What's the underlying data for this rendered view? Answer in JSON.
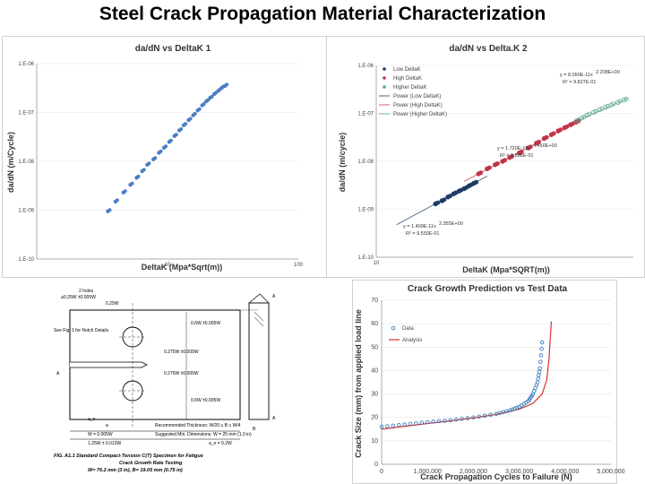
{
  "slide_title": "Steel Crack Propagation Material Characterization",
  "chart_data": [
    {
      "type": "scatter",
      "title": "da/dN vs DeltaK 1",
      "xlabel": "DeltaK (Mpa*Sqrt(m))",
      "ylabel": "da/dN (m/Cycle)",
      "x_scale": "log",
      "y_scale": "log",
      "xlim": [
        1,
        100
      ],
      "ylim": [
        1e-10,
        1e-06
      ],
      "x_ticks": [
        "10",
        "100"
      ],
      "y_ticks": [
        "1.E-10",
        "1.E-09",
        "1.E-08",
        "1.E-07",
        "1.E-06"
      ],
      "series": [
        {
          "color": "#4a7ec2",
          "x": [
            3.5,
            4.0,
            4.6,
            5.2,
            5.8,
            6.4,
            7.0,
            7.8,
            8.6,
            9.4,
            10.3,
            11.3,
            12.3,
            13.3,
            14.5,
            15.7,
            17.0,
            18.4,
            19.8,
            21.2,
            22.8,
            24.5,
            26.0,
            27.5
          ],
          "y": [
            9.5e-10,
            1.5e-09,
            2.3e-09,
            3.3e-09,
            4.6e-09,
            6.3e-09,
            8.5e-09,
            1.1e-08,
            1.5e-08,
            1.9e-08,
            2.5e-08,
            3.3e-08,
            4.3e-08,
            5.5e-08,
            7e-08,
            8.8e-08,
            1.1e-07,
            1.4e-07,
            1.7e-07,
            2e-07,
            2.4e-07,
            2.8e-07,
            3.2e-07,
            3.5e-07
          ]
        }
      ]
    },
    {
      "type": "scatter",
      "title": "da/dN vs Delta.K 2",
      "xlabel": "DeltaK (Mpa*SQRT(m))",
      "ylabel": "da/dN (m/cycle)",
      "x_scale": "log",
      "y_scale": "log",
      "xlim": [
        10,
        100
      ],
      "ylim": [
        1e-10,
        1e-06
      ],
      "x_ticks": [
        "10"
      ],
      "y_ticks": [
        "1.E-10",
        "1.E-09",
        "1.E-08",
        "1.E-07",
        "1.E-06"
      ],
      "legend": [
        "Low DeltaK",
        "High DeltaK",
        "Higher DeltaK",
        "Power (Low DeltaK)",
        "Power (High DeltaK)",
        "Power (Higher DeltaK)"
      ],
      "legend_position": "top-left",
      "annotations": [
        {
          "text": "y = 8.050E-11x",
          "sup": "2.208E+00",
          "r2": "R² = 9.827E-01"
        },
        {
          "text": "y = 1.720E-15x",
          "sup": "4.450E+00",
          "r2": "R² = 9.808E-01"
        },
        {
          "text": "y = 1.409E-11x",
          "sup": "2.355E+00",
          "r2": "R² = 9.550E-01"
        }
      ],
      "series": [
        {
          "name": "Low DeltaK",
          "color": "#1f3a66",
          "x": [
            17,
            18,
            19,
            20,
            21,
            22,
            23,
            24
          ],
          "y": [
            1.3e-09,
            1.5e-09,
            1.8e-09,
            2.1e-09,
            2.4e-09,
            2.7e-09,
            3.1e-09,
            3.5e-09
          ]
        },
        {
          "name": "High DeltaK",
          "color": "#c2344a",
          "x": [
            25,
            27,
            29,
            31,
            33,
            36,
            39,
            42,
            45,
            48,
            51,
            54,
            57,
            60
          ],
          "y": [
            5.5e-09,
            7e-09,
            8.5e-09,
            1e-08,
            1.2e-08,
            1.5e-08,
            1.9e-08,
            2.4e-08,
            3e-08,
            3.6e-08,
            4.3e-08,
            5e-08,
            5.8e-08,
            6.6e-08
          ]
        },
        {
          "name": "Higher DeltaK",
          "color": "#5aa88a",
          "x": [
            60,
            63,
            66,
            70,
            74,
            78,
            82,
            87,
            92
          ],
          "y": [
            7e-08,
            8e-08,
            9.2e-08,
            1.05e-07,
            1.2e-07,
            1.35e-07,
            1.5e-07,
            1.7e-07,
            1.9e-07
          ]
        }
      ]
    },
    {
      "type": "line",
      "title": "Crack Growth Prediction vs Test Data",
      "xlabel": "Crack Propagation Cycles to Failure (N)",
      "ylabel": "Crack Size (mm) from applied load line",
      "xlim": [
        0,
        5000000
      ],
      "ylim": [
        0,
        70
      ],
      "x_ticks": [
        "0",
        "1,000,000",
        "2,000,000",
        "3,000,000",
        "4,000,000",
        "5,000,000"
      ],
      "y_ticks": [
        "0",
        "10",
        "20",
        "30",
        "40",
        "50",
        "60",
        "70"
      ],
      "legend": [
        "Data",
        "Analysis"
      ],
      "legend_position": "top-left",
      "series": [
        {
          "name": "Data",
          "color": "#3a7fc0",
          "x": [
            0,
            500000,
            1000000,
            1500000,
            2000000,
            2500000,
            2800000,
            3000000,
            3200000,
            3300000,
            3400000,
            3450000,
            3500000
          ],
          "y": [
            16,
            17,
            18,
            18.8,
            20,
            21.5,
            23,
            24.5,
            27,
            30,
            35,
            41,
            52
          ]
        },
        {
          "name": "Analysis",
          "color": "#d63030",
          "x": [
            0,
            500000,
            1000000,
            1500000,
            2000000,
            2500000,
            3000000,
            3300000,
            3500000,
            3600000,
            3650000,
            3700000
          ],
          "y": [
            15,
            16.2,
            17.4,
            18.5,
            19.8,
            21.3,
            23.5,
            26,
            30,
            36,
            45,
            61
          ]
        }
      ]
    }
  ],
  "drawing": {
    "notes": [
      "2 holes",
      "⌀0.25W ±0.005W",
      "0.25W",
      "See Fig. 1 for Notch Details",
      "0.6W ±0.005W",
      "0.275W ±0.005W",
      "0.275W ±0.005W",
      "0.6W ±0.005W",
      "a",
      "a_n",
      "W = 0.005W",
      "1.25W ± 0.010W",
      "B",
      "A",
      "A",
      "A"
    ],
    "thickness": "Recommended Thickness: W/20 ≤ B ≤ W/4",
    "min_dims": "Suggested Min. Dimensions: W = 25 mm (1.0 in)",
    "an_note": "a_n = 0.2W",
    "caption1": "FIG. A1.1 Standard Compact-Tension C(T) Specimen for Fatigue",
    "caption2": "Crack Growth Rate Testing",
    "caption3": "W= 76.2 mm (3 in), B= 19.05 mm (0.75 in)"
  }
}
